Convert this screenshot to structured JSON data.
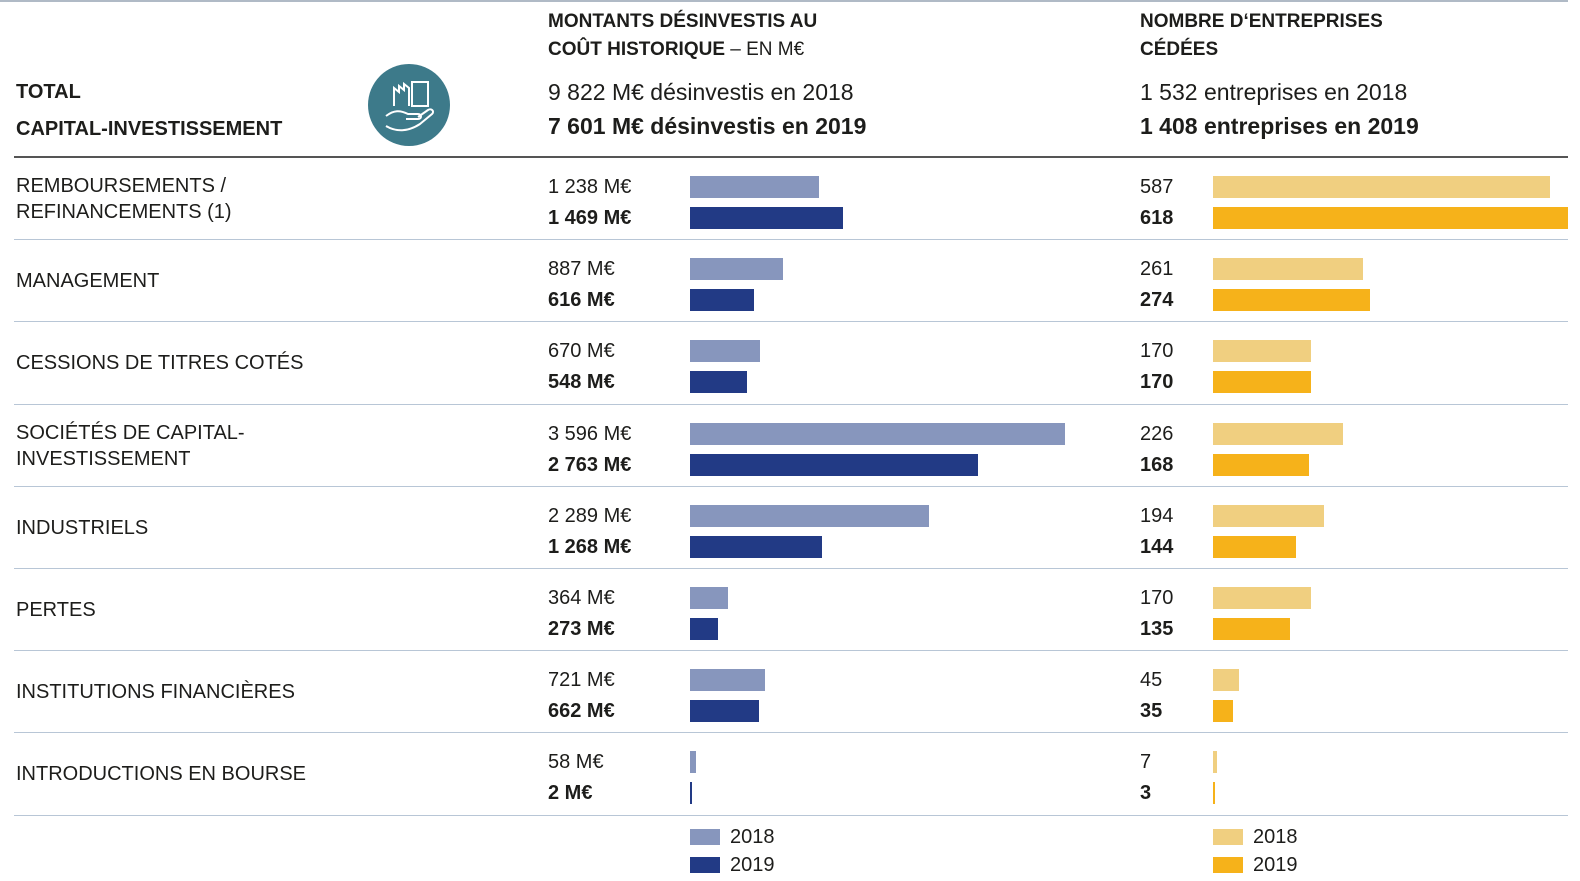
{
  "header": {
    "title_lines": [
      "TOTAL",
      "CAPITAL-INVESTISSEMENT"
    ]
  },
  "chart_data": [
    {
      "type": "bar",
      "orientation": "horizontal",
      "title": "MONTANTS DÉSINVESTIS AU COÛT HISTORIQUE",
      "unit_note": "– EN M€",
      "totals": [
        "9 822 M€ désinvestis en 2018",
        "7 601 M€ désinvestis en 2019"
      ],
      "categories": [
        "REMBOURSEMENTS / REFINANCEMENTS (1)",
        "MANAGEMENT",
        "CESSIONS DE TITRES COTÉS",
        "SOCIÉTÉS DE CAPITAL-INVESTISSEMENT",
        "INDUSTRIELS",
        "PERTES",
        "INSTITUTIONS FINANCIÈRES",
        "INTRODUCTIONS EN BOURSE"
      ],
      "series": [
        {
          "name": "2018",
          "color": "#8796bd",
          "values": [
            1238,
            887,
            670,
            3596,
            2289,
            364,
            721,
            58
          ],
          "value_labels": [
            "1 238 M€",
            "887 M€",
            "670 M€",
            "3 596 M€",
            "2 289 M€",
            "364 M€",
            "721 M€",
            "58 M€"
          ]
        },
        {
          "name": "2019",
          "color": "#223a85",
          "values": [
            1469,
            616,
            548,
            2763,
            1268,
            273,
            662,
            2
          ],
          "value_labels": [
            "1 469 M€",
            "616 M€",
            "548 M€",
            "2 763 M€",
            "1 268 M€",
            "273 M€",
            "662 M€",
            "2 M€"
          ]
        }
      ]
    },
    {
      "type": "bar",
      "orientation": "horizontal",
      "title": "NOMBRE D‘ENTREPRISES CÉDÉES",
      "totals": [
        "1 532 entreprises en 2018",
        "1 408 entreprises en 2019"
      ],
      "series": [
        {
          "name": "2018",
          "color": "#f0cf80",
          "values": [
            587,
            261,
            170,
            226,
            194,
            170,
            45,
            7
          ]
        },
        {
          "name": "2019",
          "color": "#f6b21a",
          "values": [
            618,
            274,
            170,
            168,
            144,
            135,
            35,
            3
          ]
        }
      ]
    }
  ]
}
